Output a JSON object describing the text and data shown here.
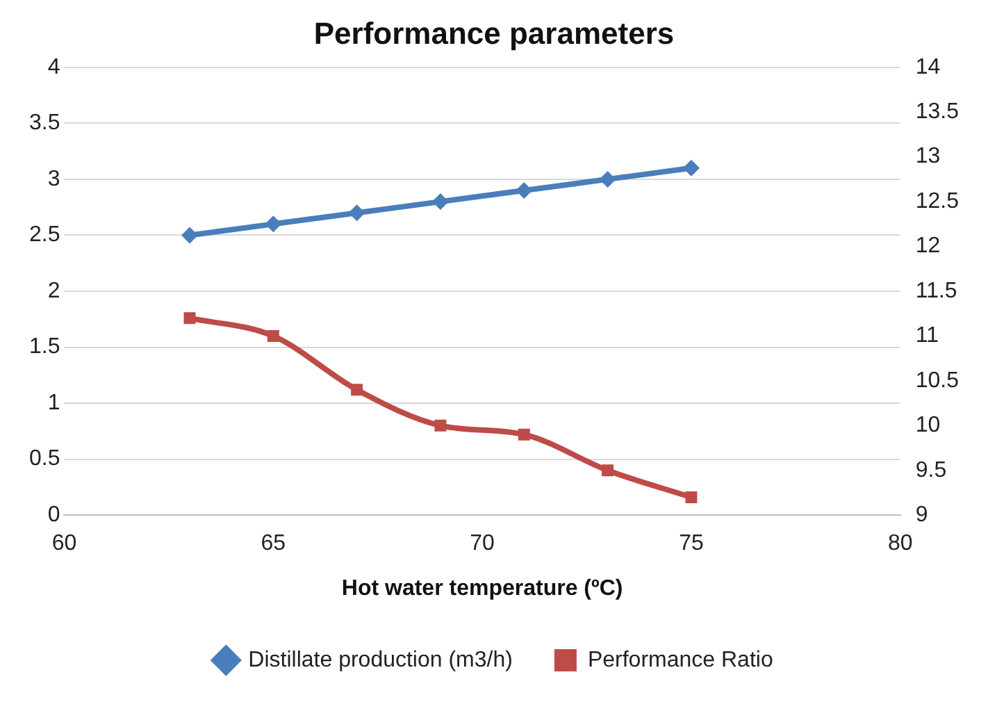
{
  "chart_data": {
    "type": "line",
    "title": "Performance parameters",
    "xlabel": "Hot water temperature (ºC)",
    "x": [
      63,
      65,
      67,
      69,
      71,
      73,
      75
    ],
    "series": [
      {
        "name": "Distillate production (m3/h)",
        "color": "#4a7ebb",
        "marker": "diamond",
        "values": [
          2.5,
          2.6,
          2.7,
          2.8,
          2.9,
          3.0,
          3.1
        ]
      },
      {
        "name": "Performance Ratio",
        "color": "#be4b48",
        "marker": "square",
        "axis": "y2",
        "values": [
          11.2,
          11.0,
          10.4,
          10.0,
          9.9,
          9.5,
          9.2
        ]
      }
    ],
    "xlim": [
      60,
      80
    ],
    "xticks": [
      60,
      65,
      70,
      75,
      80
    ],
    "ylim": [
      0,
      4
    ],
    "yticks": [
      0,
      0.5,
      1,
      1.5,
      2,
      2.5,
      3,
      3.5,
      4
    ],
    "y2lim": [
      9,
      14
    ],
    "y2ticks": [
      9,
      9.5,
      10,
      10.5,
      11,
      11.5,
      12,
      12.5,
      13,
      13.5,
      14
    ],
    "grid": "y",
    "legend": "bottom"
  }
}
